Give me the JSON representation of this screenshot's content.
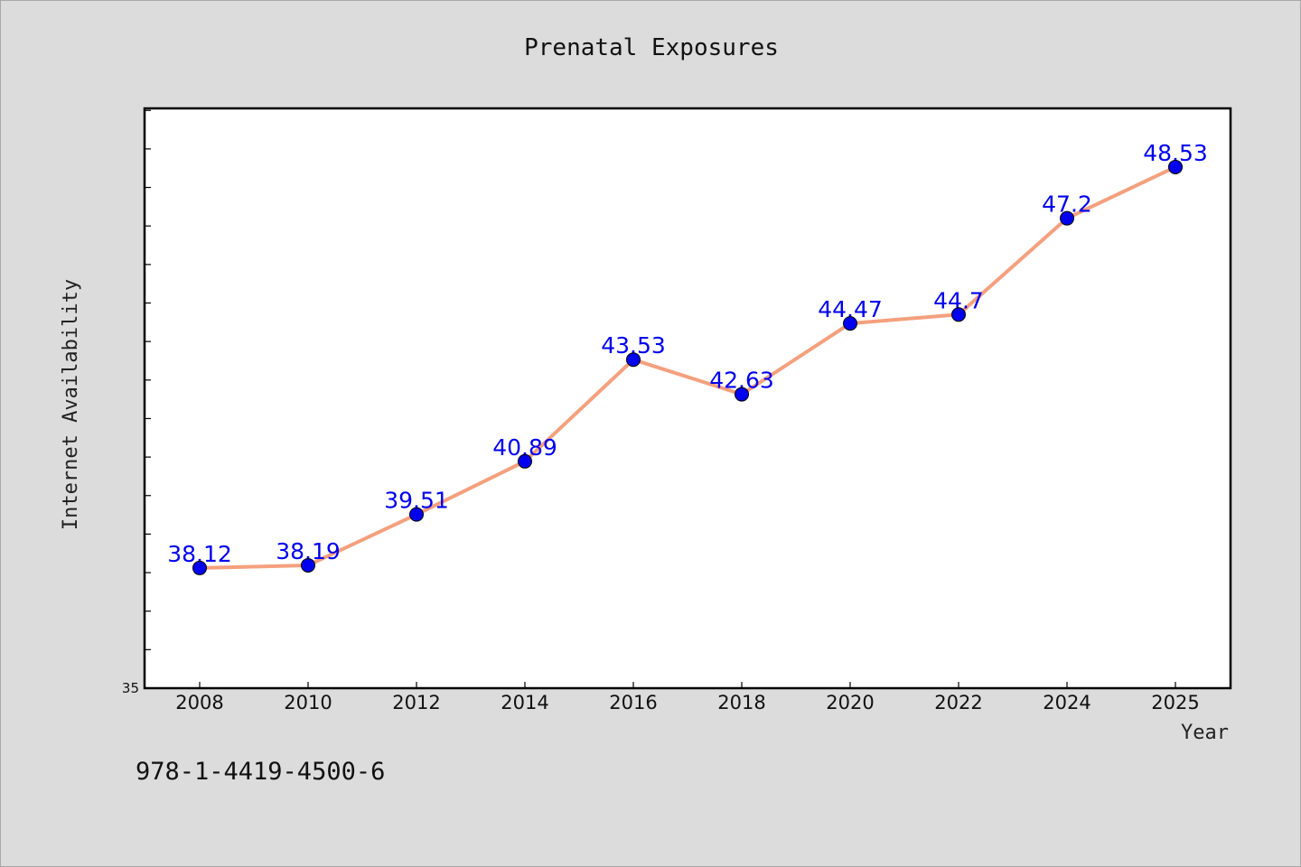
{
  "chart_data": {
    "type": "line",
    "title": "Prenatal Exposures",
    "xlabel": "Year",
    "ylabel": "Internet Availability",
    "x": [
      2008,
      2010,
      2012,
      2014,
      2016,
      2018,
      2020,
      2022,
      2024,
      2025
    ],
    "x_tick_labels": [
      "2008",
      "2010",
      "2012",
      "2014",
      "2016",
      "2018",
      "2020",
      "2022",
      "2024",
      "2025"
    ],
    "series": [
      {
        "values": [
          38.12,
          38.19,
          39.51,
          40.89,
          43.53,
          42.63,
          44.47,
          44.7,
          47.2,
          48.53
        ],
        "labels": [
          "38.12",
          "38.19",
          "39.51",
          "40.89",
          "43.53",
          "42.63",
          "44.47",
          "44.7",
          "47.2",
          "48.53"
        ]
      }
    ],
    "y_tick_labels": [
      "35"
    ],
    "ylim": [
      35,
      50
    ],
    "grid": false,
    "line_color": "#f4a07e",
    "marker_color": "#0000ee",
    "label_color": "#0000ee"
  },
  "footer": {
    "isbn": "978-1-4419-4500-6"
  }
}
